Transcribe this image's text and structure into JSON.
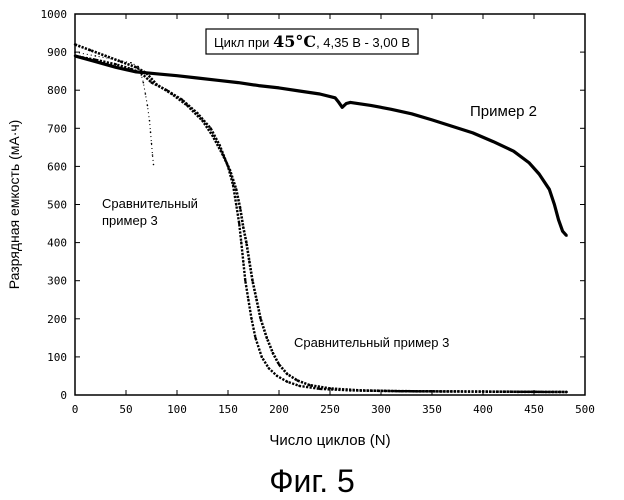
{
  "chart_data": {
    "type": "scatter",
    "xlabel": "Число циклов (N)",
    "ylabel": "Разрядная емкость (мА·ч)",
    "caption": "Фиг. 5",
    "conditions": {
      "prefix": "Цикл при ",
      "temp": "45°C",
      "rest": ", 4,35 В - 3,00 В"
    },
    "xlim": [
      0,
      500
    ],
    "ylim": [
      0,
      1000
    ],
    "xticks": [
      "0",
      "50",
      "100",
      "150",
      "200",
      "250",
      "300",
      "350",
      "400",
      "450",
      "500"
    ],
    "yticks": [
      "0",
      "100",
      "200",
      "300",
      "400",
      "500",
      "600",
      "700",
      "800",
      "900",
      "1000"
    ],
    "grid": false,
    "annotations": {
      "example2": "Пример 2",
      "comp_a_line1": "Сравнительный",
      "comp_a_line2": "пример 3",
      "comp_b": "Сравнительный пример 3"
    },
    "series": [
      {
        "points": [
          [
            0,
            890
          ],
          [
            20,
            875
          ],
          [
            40,
            860
          ],
          [
            60,
            848
          ],
          [
            80,
            843
          ],
          [
            100,
            838
          ],
          [
            120,
            832
          ],
          [
            140,
            826
          ],
          [
            160,
            820
          ],
          [
            180,
            812
          ],
          [
            200,
            806
          ],
          [
            220,
            798
          ],
          [
            240,
            790
          ],
          [
            255,
            780
          ],
          [
            258,
            770
          ],
          [
            262,
            755
          ],
          [
            266,
            765
          ],
          [
            270,
            768
          ],
          [
            290,
            760
          ],
          [
            310,
            750
          ],
          [
            330,
            738
          ],
          [
            350,
            722
          ],
          [
            370,
            705
          ],
          [
            390,
            688
          ],
          [
            410,
            665
          ],
          [
            430,
            640
          ],
          [
            445,
            610
          ],
          [
            455,
            580
          ],
          [
            465,
            540
          ],
          [
            470,
            500
          ],
          [
            474,
            460
          ],
          [
            478,
            430
          ],
          [
            482,
            418
          ]
        ]
      },
      {
        "points": [
          [
            0,
            920
          ],
          [
            15,
            905
          ],
          [
            30,
            890
          ],
          [
            45,
            875
          ],
          [
            60,
            860
          ],
          [
            70,
            845
          ],
          [
            80,
            815
          ],
          [
            95,
            790
          ],
          [
            110,
            760
          ],
          [
            125,
            720
          ],
          [
            135,
            680
          ],
          [
            145,
            630
          ],
          [
            152,
            590
          ],
          [
            158,
            540
          ],
          [
            162,
            490
          ],
          [
            165,
            440
          ],
          [
            168,
            400
          ],
          [
            171,
            350
          ],
          [
            174,
            300
          ],
          [
            178,
            250
          ],
          [
            182,
            200
          ],
          [
            188,
            150
          ],
          [
            194,
            110
          ],
          [
            200,
            80
          ],
          [
            208,
            55
          ],
          [
            218,
            38
          ],
          [
            230,
            26
          ],
          [
            250,
            17
          ],
          [
            280,
            12
          ],
          [
            320,
            10
          ],
          [
            400,
            9
          ],
          [
            482,
            8
          ]
        ]
      },
      {
        "points": [
          [
            0,
            890
          ],
          [
            20,
            880
          ],
          [
            40,
            868
          ],
          [
            55,
            856
          ],
          [
            65,
            845
          ],
          [
            75,
            820
          ],
          [
            90,
            800
          ],
          [
            105,
            775
          ],
          [
            120,
            740
          ],
          [
            133,
            700
          ],
          [
            142,
            655
          ],
          [
            150,
            600
          ],
          [
            155,
            550
          ],
          [
            158,
            500
          ],
          [
            161,
            450
          ],
          [
            163,
            400
          ],
          [
            165,
            350
          ],
          [
            167,
            300
          ],
          [
            170,
            250
          ],
          [
            173,
            200
          ],
          [
            177,
            150
          ],
          [
            183,
            100
          ],
          [
            190,
            70
          ],
          [
            198,
            50
          ],
          [
            208,
            35
          ],
          [
            220,
            24
          ],
          [
            240,
            16
          ],
          [
            270,
            12
          ],
          [
            320,
            10
          ],
          [
            400,
            9
          ],
          [
            482,
            8
          ]
        ]
      },
      {
        "points": [
          [
            0,
            900
          ],
          [
            20,
            890
          ],
          [
            40,
            880
          ],
          [
            55,
            872
          ],
          [
            62,
            862
          ],
          [
            65,
            840
          ],
          [
            67,
            820
          ],
          [
            69,
            790
          ],
          [
            71,
            760
          ],
          [
            73,
            720
          ],
          [
            74,
            690
          ],
          [
            75,
            660
          ],
          [
            76,
            630
          ],
          [
            77,
            605
          ]
        ]
      }
    ]
  }
}
